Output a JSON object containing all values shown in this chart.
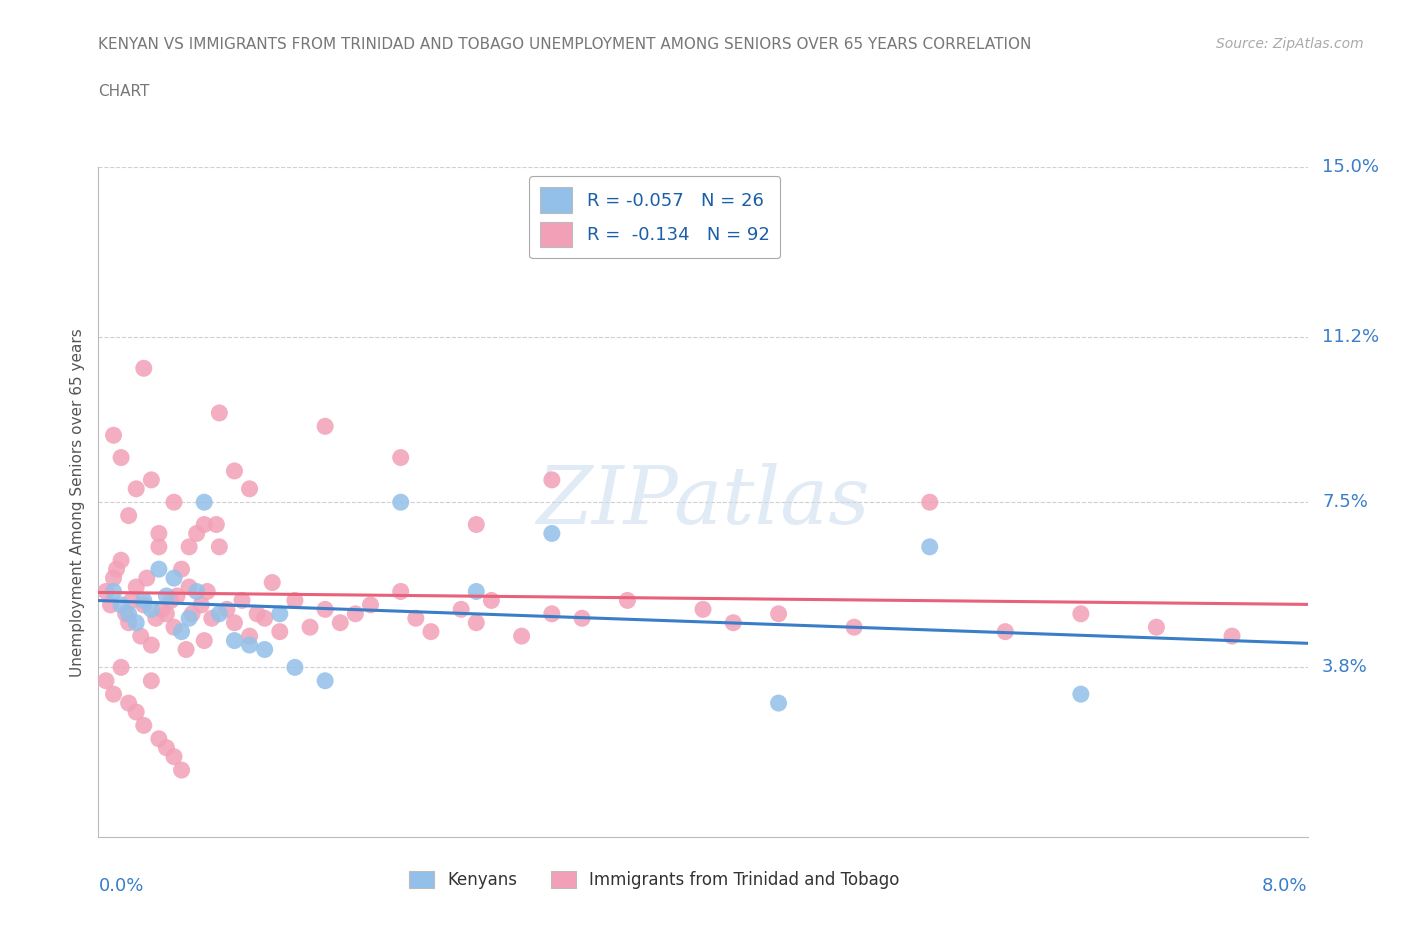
{
  "title_line1": "KENYAN VS IMMIGRANTS FROM TRINIDAD AND TOBAGO UNEMPLOYMENT AMONG SENIORS OVER 65 YEARS CORRELATION",
  "title_line2": "CHART",
  "source": "Source: ZipAtlas.com",
  "ylabel": "Unemployment Among Seniors over 65 years",
  "color_kenyan": "#92c0e8",
  "color_tt": "#f2a0b8",
  "color_kenyan_line": "#3a7ec8",
  "color_tt_line": "#e8607a",
  "background_color": "#ffffff",
  "grid_color": "#d0d0d0",
  "xlim": [
    0.0,
    8.0
  ],
  "ylim": [
    0.0,
    15.0
  ],
  "ytick_vals": [
    3.8,
    7.5,
    11.2,
    15.0
  ],
  "ytick_labels": [
    "3.8%",
    "7.5%",
    "11.2%",
    "15.0%"
  ],
  "legend_r1": "R = -0.057   N = 26",
  "legend_r2": "R =  -0.134   N = 92",
  "kenyan_x": [
    0.1,
    0.15,
    0.2,
    0.25,
    0.3,
    0.35,
    0.4,
    0.45,
    0.5,
    0.55,
    0.6,
    0.65,
    0.7,
    0.8,
    0.9,
    1.0,
    1.1,
    1.2,
    1.3,
    1.5,
    2.0,
    2.5,
    3.0,
    4.5,
    5.5,
    6.5
  ],
  "kenyan_y": [
    5.5,
    5.2,
    5.0,
    4.8,
    5.3,
    5.1,
    6.0,
    5.4,
    5.8,
    4.6,
    4.9,
    5.5,
    7.5,
    5.0,
    4.4,
    4.3,
    4.2,
    5.0,
    3.8,
    3.5,
    7.5,
    5.5,
    6.8,
    3.0,
    6.5,
    3.2
  ],
  "tt_x": [
    0.05,
    0.08,
    0.1,
    0.12,
    0.15,
    0.18,
    0.2,
    0.22,
    0.25,
    0.28,
    0.3,
    0.32,
    0.35,
    0.38,
    0.4,
    0.42,
    0.45,
    0.48,
    0.5,
    0.52,
    0.55,
    0.58,
    0.6,
    0.62,
    0.65,
    0.68,
    0.7,
    0.72,
    0.75,
    0.78,
    0.8,
    0.85,
    0.9,
    0.95,
    1.0,
    1.05,
    1.1,
    1.15,
    1.2,
    1.3,
    1.4,
    1.5,
    1.6,
    1.7,
    1.8,
    2.0,
    2.1,
    2.2,
    2.4,
    2.5,
    2.6,
    2.8,
    3.0,
    3.2,
    3.5,
    4.0,
    4.2,
    4.5,
    5.0,
    5.5,
    6.0,
    6.5,
    7.0,
    7.5,
    0.1,
    0.15,
    0.2,
    0.25,
    0.3,
    0.35,
    0.4,
    0.5,
    0.6,
    0.7,
    0.8,
    0.9,
    1.0,
    1.5,
    2.0,
    2.5,
    3.0,
    0.05,
    0.1,
    0.15,
    0.2,
    0.25,
    0.3,
    0.35,
    0.4,
    0.45,
    0.5,
    0.55
  ],
  "tt_y": [
    5.5,
    5.2,
    5.8,
    6.0,
    6.2,
    5.0,
    4.8,
    5.3,
    5.6,
    4.5,
    5.2,
    5.8,
    4.3,
    4.9,
    6.5,
    5.1,
    5.0,
    5.3,
    4.7,
    5.4,
    6.0,
    4.2,
    5.6,
    5.0,
    6.8,
    5.2,
    4.4,
    5.5,
    4.9,
    7.0,
    6.5,
    5.1,
    4.8,
    5.3,
    4.5,
    5.0,
    4.9,
    5.7,
    4.6,
    5.3,
    4.7,
    5.1,
    4.8,
    5.0,
    5.2,
    5.5,
    4.9,
    4.6,
    5.1,
    4.8,
    5.3,
    4.5,
    5.0,
    4.9,
    5.3,
    5.1,
    4.8,
    5.0,
    4.7,
    7.5,
    4.6,
    5.0,
    4.7,
    4.5,
    9.0,
    8.5,
    7.2,
    7.8,
    10.5,
    8.0,
    6.8,
    7.5,
    6.5,
    7.0,
    9.5,
    8.2,
    7.8,
    9.2,
    8.5,
    7.0,
    8.0,
    3.5,
    3.2,
    3.8,
    3.0,
    2.8,
    2.5,
    3.5,
    2.2,
    2.0,
    1.8,
    1.5
  ]
}
